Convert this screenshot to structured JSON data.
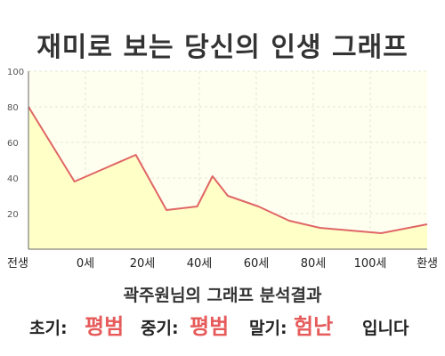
{
  "title": "재미로 보는 당신의 인생 그래프",
  "chart_data": {
    "type": "area",
    "title": "재미로 보는 당신의 인생 그래프",
    "x_tick_labels": [
      "전생",
      "0세",
      "20세",
      "40세",
      "60세",
      "80세",
      "100세",
      "환생"
    ],
    "x": [
      -15,
      0,
      20,
      30,
      40,
      45,
      50,
      60,
      70,
      80,
      100,
      115
    ],
    "values": [
      80,
      38,
      53,
      22,
      24,
      41,
      30,
      24,
      16,
      12,
      9,
      14
    ],
    "ylim": [
      0,
      100
    ],
    "yticks": [
      20,
      40,
      60,
      80,
      100
    ],
    "grid": true,
    "colors": {
      "line": "#e06666",
      "fill": "#ffffc8",
      "plot_bg": "#fffff0",
      "grid": "#e6e6d0",
      "axis": "#666666"
    }
  },
  "summary": {
    "text": "곽주원님의 그래프 분석결과"
  },
  "result": {
    "early_label": "초기:",
    "early_value": "평범",
    "mid_label": "중기:",
    "mid_value": "평범",
    "late_label": "말기:",
    "late_value": "험난",
    "suffix": "입니다"
  }
}
